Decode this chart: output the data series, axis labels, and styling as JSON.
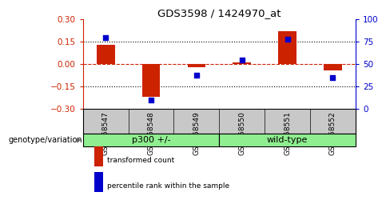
{
  "title": "GDS3598 / 1424970_at",
  "samples": [
    "GSM458547",
    "GSM458548",
    "GSM458549",
    "GSM458550",
    "GSM458551",
    "GSM458552"
  ],
  "red_values": [
    0.13,
    -0.22,
    -0.02,
    0.01,
    0.22,
    -0.04
  ],
  "blue_values": [
    80,
    10,
    38,
    55,
    78,
    35
  ],
  "ylim_left": [
    -0.3,
    0.3
  ],
  "ylim_right": [
    0,
    100
  ],
  "yticks_left": [
    -0.3,
    -0.15,
    0,
    0.15,
    0.3
  ],
  "yticks_right": [
    0,
    25,
    50,
    75,
    100
  ],
  "bar_color": "#CC2200",
  "dot_color": "#0000CC",
  "zero_line_color": "#CC2200",
  "dotted_line_color": "#000000",
  "bg_sample": "#C8C8C8",
  "bg_group": "#90EE90",
  "group_label": "genotype/variation",
  "groups": [
    {
      "label": "p300 +/-",
      "start": 0,
      "end": 2
    },
    {
      "label": "wild-type",
      "start": 3,
      "end": 5
    }
  ],
  "legend_red": "transformed count",
  "legend_blue": "percentile rank within the sample",
  "bar_width": 0.4
}
